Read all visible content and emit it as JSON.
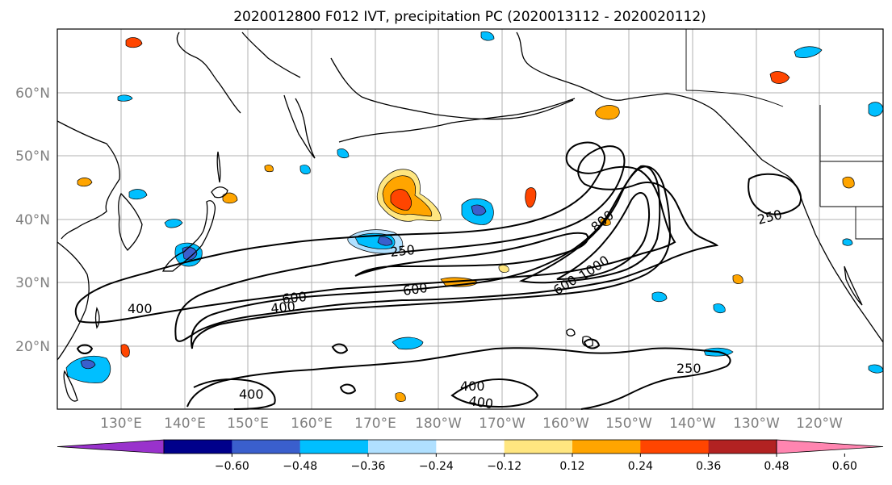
{
  "title": "2020012800 F012 IVT, precipitation PC (2020013112 - 2020020112)",
  "lat_labels": [
    "60°N",
    "50°N",
    "40°N",
    "30°N",
    "20°N"
  ],
  "lon_labels": [
    "130°E",
    "140°E",
    "150°E",
    "160°E",
    "170°E",
    "180°W",
    "170°W",
    "160°W",
    "150°W",
    "140°W",
    "130°W",
    "120°W"
  ],
  "contour_labels": [
    "250",
    "250",
    "250",
    "400",
    "400",
    "400",
    "400",
    "400",
    "600",
    "600",
    "600",
    "800",
    "1000"
  ],
  "colorbar": {
    "colors": [
      "#9932cc",
      "#00008b",
      "#3a5fcd",
      "#00bfff",
      "#b0e0ff",
      "#ffffff",
      "#ffe680",
      "#ffa500",
      "#ff4500",
      "#b22222",
      "#ff85b0"
    ],
    "tick_labels": [
      "−0.60",
      "−0.48",
      "−0.36",
      "−0.24",
      "−0.12",
      "0.12",
      "0.24",
      "0.36",
      "0.48",
      "0.60"
    ]
  },
  "palette": {
    "neg_light": "#b0e0ff",
    "neg_mid": "#00bfff",
    "neg_dark": "#3a5fcd",
    "neg_purple": "#9932cc",
    "pos_light": "#ffe680",
    "pos_mid": "#ffa500",
    "pos_high": "#ff4500"
  }
}
